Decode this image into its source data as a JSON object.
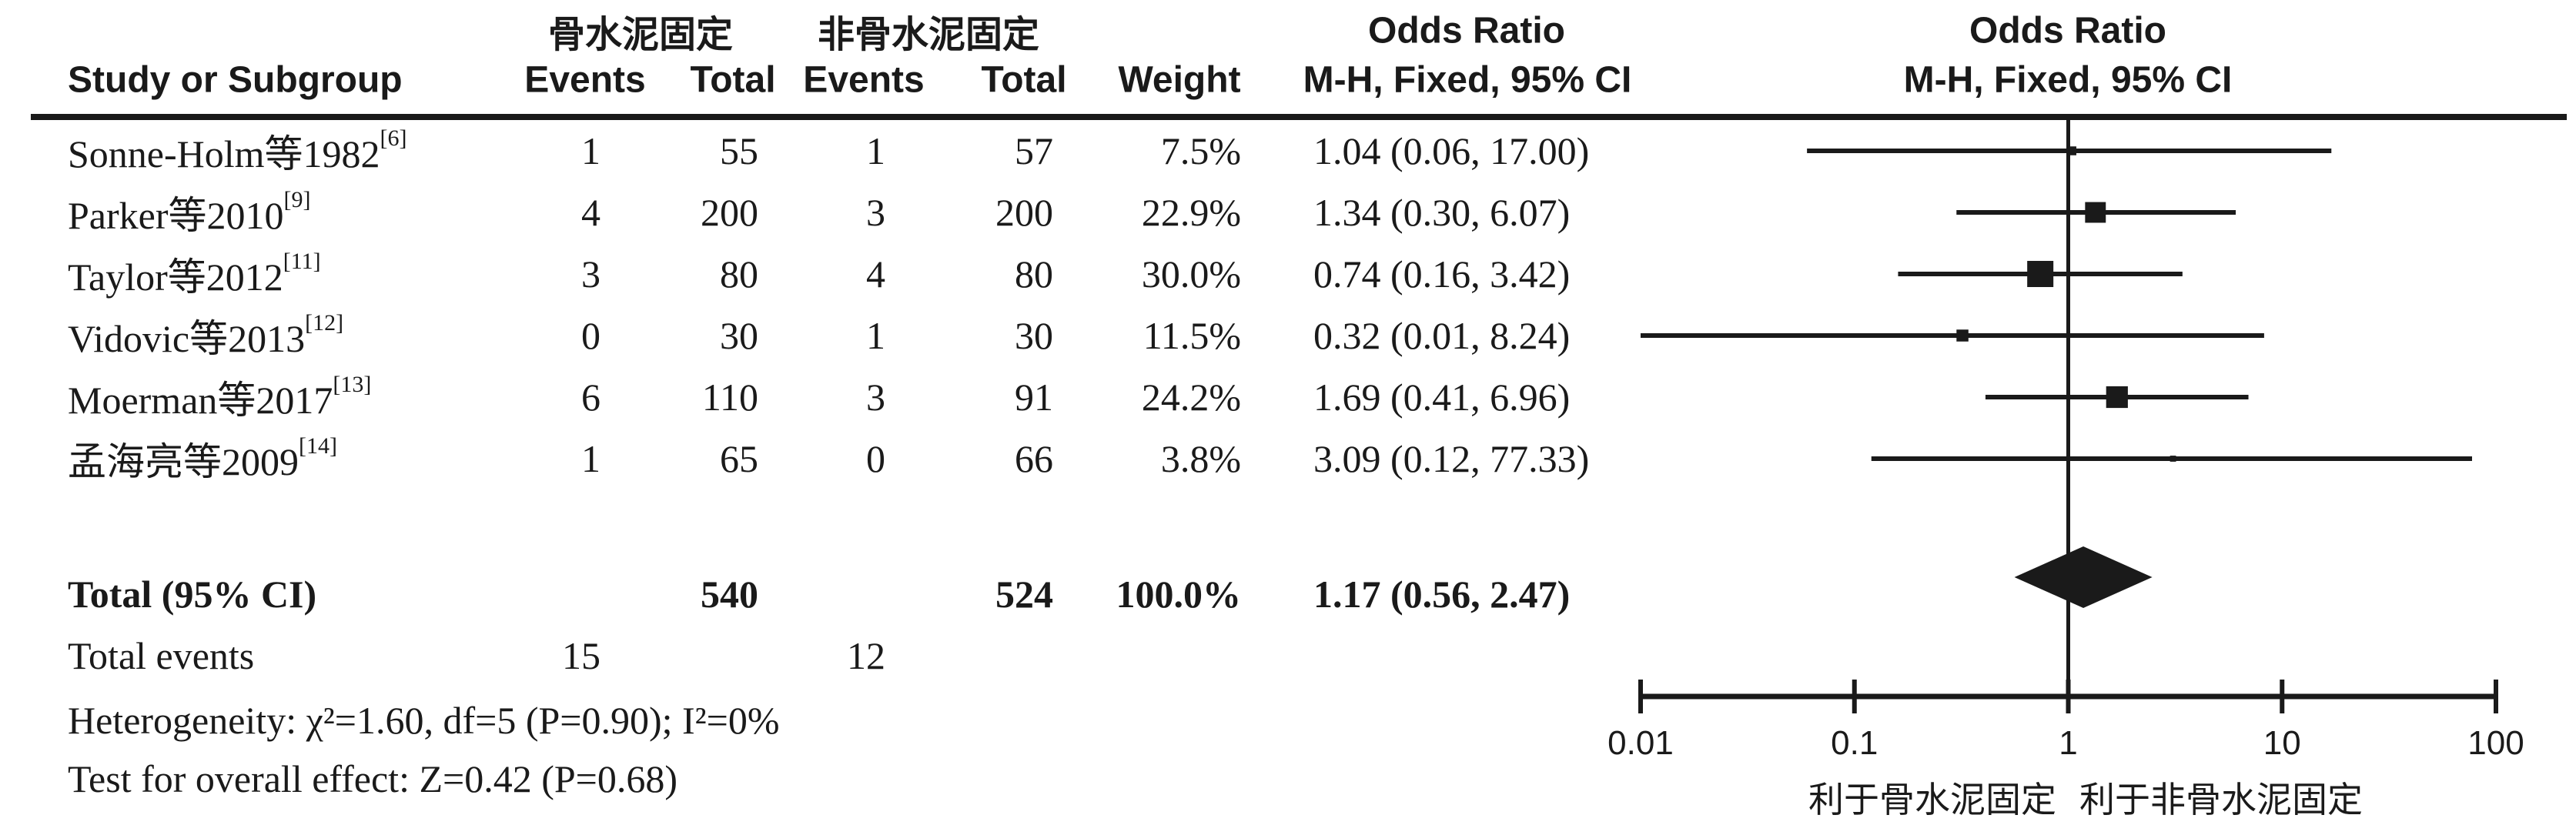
{
  "header": {
    "group1": "骨水泥固定",
    "group2": "非骨水泥固定",
    "odds_ratio": "Odds Ratio",
    "odds_ratio_right": "Odds Ratio",
    "study_col": "Study or Subgroup",
    "events_col": "Events",
    "total_col": "Total",
    "events2_col": "Events",
    "total2_col": "Total",
    "weight_col": "Weight",
    "mh_ci": "M-H, Fixed, 95% CI",
    "mh_ci_right": "M-H, Fixed, 95% CI"
  },
  "table": {
    "rows": [
      {
        "name": "Sonne-Holm等1982",
        "ref": "[6]",
        "events1": "1",
        "total1": "55",
        "events2": "1",
        "total2": "57",
        "weight": "7.5%",
        "or_ci": "1.04 (0.06, 17.00)"
      },
      {
        "name": "Parker等2010",
        "ref": "[9]",
        "events1": "4",
        "total1": "200",
        "events2": "3",
        "total2": "200",
        "weight": "22.9%",
        "or_ci": "1.34 (0.30, 6.07)"
      },
      {
        "name": "Taylor等2012",
        "ref": "[11]",
        "events1": "3",
        "total1": "80",
        "events2": "4",
        "total2": "80",
        "weight": "30.0%",
        "or_ci": "0.74 (0.16, 3.42)"
      },
      {
        "name": "Vidovic等2013",
        "ref": "[12]",
        "events1": "0",
        "total1": "30",
        "events2": "1",
        "total2": "30",
        "weight": "11.5%",
        "or_ci": "0.32 (0.01, 8.24)"
      },
      {
        "name": "Moerman等2017",
        "ref": "[13]",
        "events1": "6",
        "total1": "110",
        "events2": "3",
        "total2": "91",
        "weight": "24.2%",
        "or_ci": "1.69 (0.41, 6.96)"
      },
      {
        "name": "孟海亮等2009",
        "ref": "[14]",
        "events1": "1",
        "total1": "65",
        "events2": "0",
        "total2": "66",
        "weight": "3.8%",
        "or_ci": "3.09 (0.12, 77.33)"
      }
    ]
  },
  "totals": {
    "label": "Total (95% CI)",
    "total1": "540",
    "total2": "524",
    "weight": "100.0%",
    "or_ci": "1.17 (0.56, 2.47)",
    "events_label": "Total events",
    "events1": "15",
    "events2": "12"
  },
  "footer": {
    "heterogeneity": "Heterogeneity: χ²=1.60, df=5 (P=0.90); I²=0%",
    "overall_effect": "Test for overall effect: Z=0.42 (P=0.68)"
  },
  "chart_data": {
    "type": "forest",
    "effect_measure": "Odds Ratio",
    "method": "M-H, Fixed, 95% CI",
    "x_scale": "log",
    "x_range": [
      0.01,
      100
    ],
    "x_ticks": [
      "0.01",
      "0.1",
      "1",
      "10",
      "100"
    ],
    "null_line": 1,
    "studies": [
      {
        "name": "Sonne-Holm等1982",
        "or": 1.04,
        "lo": 0.06,
        "hi": 17.0,
        "weight_pct": 7.5
      },
      {
        "name": "Parker等2010",
        "or": 1.34,
        "lo": 0.3,
        "hi": 6.07,
        "weight_pct": 22.9
      },
      {
        "name": "Taylor等2012",
        "or": 0.74,
        "lo": 0.16,
        "hi": 3.42,
        "weight_pct": 30.0
      },
      {
        "name": "Vidovic等2013",
        "or": 0.32,
        "lo": 0.01,
        "hi": 8.24,
        "weight_pct": 11.5
      },
      {
        "name": "Moerman等2017",
        "or": 1.69,
        "lo": 0.41,
        "hi": 6.96,
        "weight_pct": 24.2
      },
      {
        "name": "孟海亮等2009",
        "or": 3.09,
        "lo": 0.12,
        "hi": 77.33,
        "weight_pct": 3.8
      }
    ],
    "total": {
      "label": "Total (95% CI)",
      "or": 1.17,
      "lo": 0.56,
      "hi": 2.47,
      "weight_pct": 100.0
    },
    "favor_left": "利于骨水泥固定",
    "favor_right": "利于非骨水泥固定",
    "ink_color": "#1a1a1a"
  }
}
